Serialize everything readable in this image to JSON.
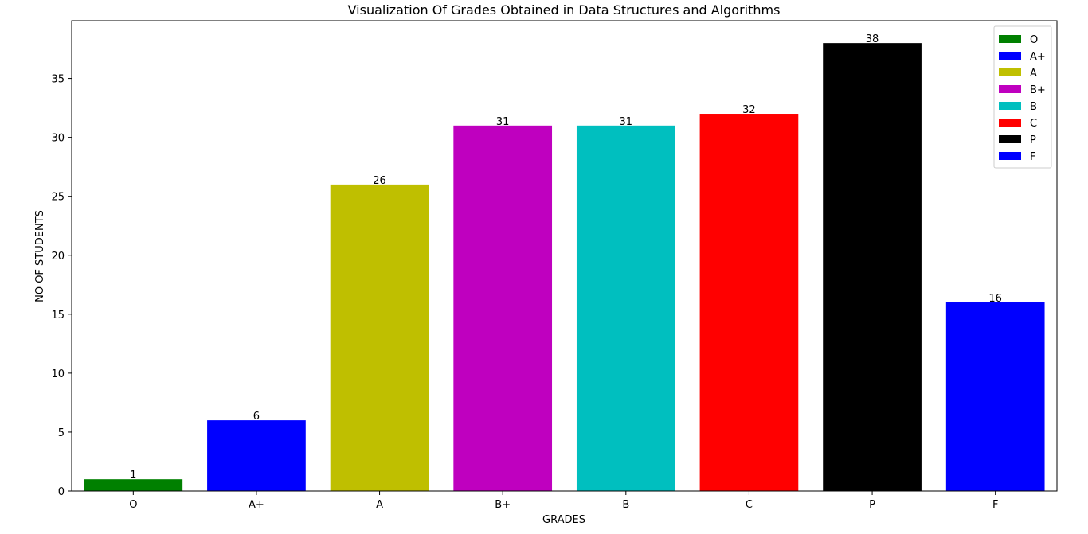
{
  "chart_data": {
    "type": "bar",
    "title": "Visualization Of Grades Obtained in Data Structures and Algorithms",
    "xlabel": "GRADES",
    "ylabel": "NO OF STUDENTS",
    "categories": [
      "O",
      "A+",
      "A",
      "B+",
      "B",
      "C",
      "P",
      "F"
    ],
    "values": [
      1,
      6,
      26,
      31,
      31,
      32,
      38,
      16
    ],
    "colors": [
      "#008000",
      "#0000ff",
      "#bfbf00",
      "#bf00bf",
      "#00bfbf",
      "#ff0000",
      "#000000",
      "#0000ff"
    ],
    "ylim": [
      0,
      39.9
    ],
    "yticks": [
      0,
      5,
      10,
      15,
      20,
      25,
      30,
      35
    ],
    "grid": false,
    "legend": {
      "placement": "top-right",
      "entries": [
        "O",
        "A+",
        "A",
        "B+",
        "B",
        "C",
        "P",
        "F"
      ]
    }
  }
}
